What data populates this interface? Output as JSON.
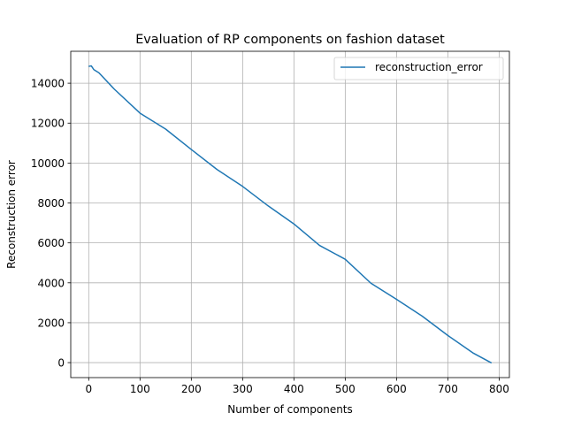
{
  "chart_data": {
    "type": "line",
    "title": "Evaluation of RP components on fashion dataset",
    "xlabel": "Number of components",
    "ylabel": "Reconstruction error",
    "xlim": [
      -35,
      820
    ],
    "ylim": [
      -750,
      15600
    ],
    "xticks": [
      0,
      100,
      200,
      300,
      400,
      500,
      600,
      700,
      800
    ],
    "yticks": [
      0,
      2000,
      4000,
      6000,
      8000,
      10000,
      12000,
      14000
    ],
    "grid": true,
    "legend_position": "top-right",
    "series": [
      {
        "name": "reconstruction_error",
        "color": "#1f77b4",
        "x": [
          1,
          5,
          10,
          20,
          50,
          100,
          150,
          200,
          250,
          300,
          350,
          400,
          450,
          500,
          550,
          600,
          650,
          700,
          750,
          784
        ],
        "y": [
          14850,
          14870,
          14680,
          14520,
          13700,
          12500,
          11700,
          10680,
          9680,
          8830,
          7850,
          6950,
          5870,
          5180,
          3980,
          3170,
          2330,
          1360,
          470,
          0
        ]
      }
    ]
  }
}
